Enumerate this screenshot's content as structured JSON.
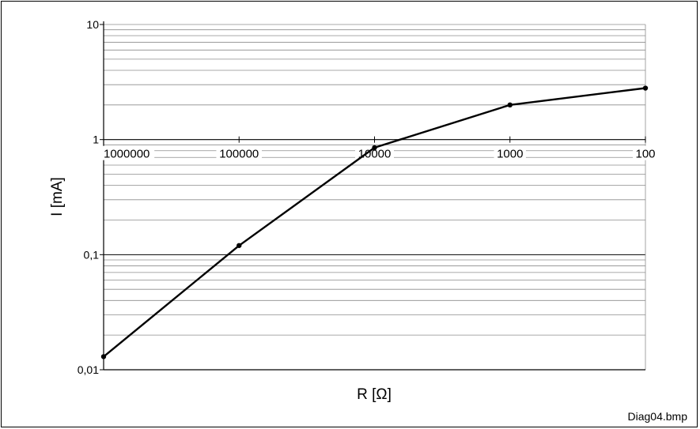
{
  "chart_data": {
    "type": "line",
    "title": "",
    "xlabel": "R [Ω]",
    "ylabel": "I [mA]",
    "x_scale": "log",
    "x_reversed": true,
    "y_scale": "log",
    "xlim": [
      1000000,
      100
    ],
    "ylim": [
      0.01,
      10
    ],
    "grid": true,
    "x_tick_labels": [
      "1000000",
      "100000",
      "10000",
      "1000",
      "100"
    ],
    "x_tick_values": [
      1000000,
      100000,
      10000,
      1000,
      100
    ],
    "y_tick_labels": [
      "0,01",
      "0,1",
      "1",
      "10"
    ],
    "y_tick_values": [
      0.01,
      0.1,
      1,
      10
    ],
    "series": [
      {
        "x": [
          1000000,
          100000,
          10000,
          1000,
          100
        ],
        "y": [
          0.013,
          0.12,
          0.85,
          2.0,
          2.8
        ]
      }
    ],
    "line_color": "#000000",
    "grid_color": "#8c8c8c"
  },
  "footer": {
    "filename": "Diag04.bmp"
  }
}
